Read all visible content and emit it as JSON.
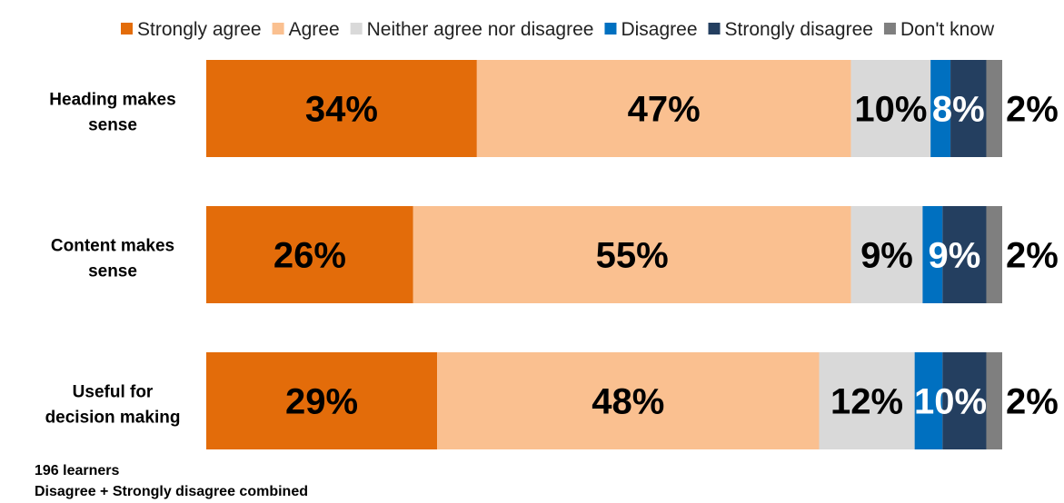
{
  "chart_data": {
    "type": "bar",
    "orientation": "horizontal",
    "stacked": true,
    "categories": [
      [
        "Heading makes",
        "sense"
      ],
      [
        "Content makes",
        "sense"
      ],
      [
        "Useful for",
        "decision making"
      ]
    ],
    "series": [
      {
        "name": "Strongly agree",
        "color": "#E36C0A",
        "text_color": "#000000",
        "values": [
          34,
          26,
          29
        ],
        "labels": [
          "34%",
          "26%",
          "29%"
        ]
      },
      {
        "name": "Agree",
        "color": "#FAC090",
        "text_color": "#000000",
        "values": [
          47,
          55,
          48
        ],
        "labels": [
          "47%",
          "55%",
          "48%"
        ]
      },
      {
        "name": "Neither agree nor disagree",
        "color": "#D9D9D9",
        "text_color": "#000000",
        "values": [
          10,
          9,
          12
        ],
        "labels": [
          "10%",
          "9%",
          "12%"
        ]
      },
      {
        "name": "Disagree",
        "color": "#0070C0",
        "text_color": "#FFFFFF",
        "values": [
          2.5,
          2.5,
          3.5
        ],
        "labels": [
          "8%",
          "9%",
          "10%"
        ],
        "combined_label": true
      },
      {
        "name": "Strongly disagree",
        "color": "#243F60",
        "text_color": "#FFFFFF",
        "values": [
          4.5,
          5.5,
          5.5
        ],
        "labels": [
          "",
          "",
          ""
        ]
      },
      {
        "name": "Don't know",
        "color": "#7F7F7F",
        "text_color": "#000000",
        "values": [
          2,
          2,
          2
        ],
        "labels": [
          "2%",
          "2%",
          "2%"
        ],
        "label_outside": true
      }
    ],
    "xlim": [
      0,
      100
    ],
    "legend_position": "top",
    "grid": false
  },
  "footnotes": {
    "sample": "196 learners",
    "note": "Disagree + Strongly disagree combined"
  }
}
